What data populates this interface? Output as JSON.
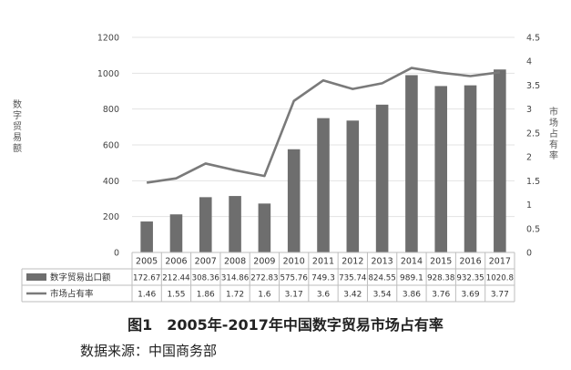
{
  "chart_data": {
    "type": "bar",
    "categories": [
      "2005",
      "2006",
      "2007",
      "2008",
      "2009",
      "2010",
      "2011",
      "2012",
      "2013",
      "2014",
      "2015",
      "2016",
      "2017"
    ],
    "series": [
      {
        "name": "数字贸易出口额",
        "kind": "bar",
        "axis": "left",
        "color": "#6e6e6e",
        "values": [
          172.67,
          212.44,
          308.36,
          314.86,
          272.83,
          575.76,
          749.3,
          735.74,
          824.55,
          989.1,
          928.38,
          932.35,
          1020.8
        ],
        "labels": [
          "172.67",
          "212.44",
          "308.36",
          "314.86",
          "272.83",
          "575.76",
          "749.3",
          "735.74",
          "824.55",
          "989.1",
          "928.38",
          "932.35",
          "1020.8"
        ]
      },
      {
        "name": "市场占有率",
        "kind": "line",
        "axis": "right",
        "color": "#7a7a7a",
        "values": [
          1.46,
          1.55,
          1.86,
          1.72,
          1.6,
          3.17,
          3.6,
          3.42,
          3.54,
          3.86,
          3.76,
          3.69,
          3.77
        ],
        "labels": [
          "1.46",
          "1.55",
          "1.86",
          "1.72",
          "1.6",
          "3.17",
          "3.6",
          "3.42",
          "3.54",
          "3.86",
          "3.76",
          "3.69",
          "3.77"
        ]
      }
    ],
    "ylabel": "数字贸易额",
    "y2label": "市场占有率",
    "ylim": [
      0,
      1200
    ],
    "y2lim": [
      0,
      4.5
    ],
    "yticks": [
      "0",
      "200",
      "400",
      "600",
      "800",
      "1000",
      "1200"
    ],
    "y2ticks": [
      "0",
      "0.5",
      "1",
      "1.5",
      "2",
      "2.5",
      "3",
      "3.5",
      "4",
      "4.5"
    ],
    "grid": true,
    "legend": "data-table-below"
  },
  "caption": "图1　2005年-2017年中国数字贸易市场占有率",
  "source": "数据来源：中国商务部"
}
